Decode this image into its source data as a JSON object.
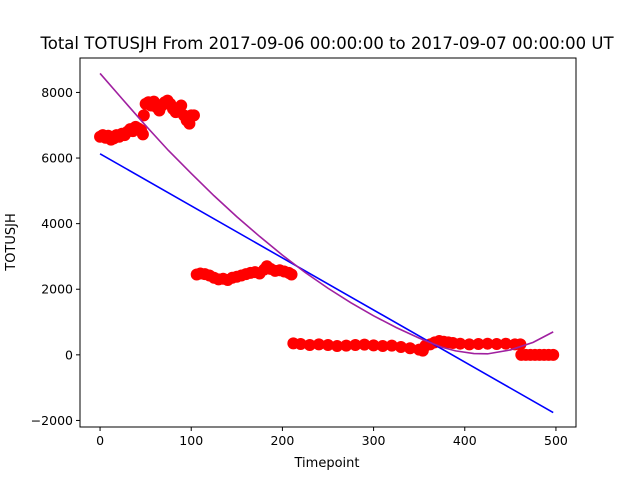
{
  "chart_data": {
    "type": "scatter",
    "title": "Total TOTUSJH From 2017-09-06 00:00:00 to 2017-09-07 00:00:00 UT",
    "xlabel": "Timepoint",
    "ylabel": "TOTUSJH",
    "xlim": [
      -22,
      522
    ],
    "ylim": [
      -2200,
      9050
    ],
    "x_ticks": [
      0,
      100,
      200,
      300,
      400,
      500
    ],
    "y_ticks": [
      -2000,
      0,
      2000,
      4000,
      6000,
      8000
    ],
    "x_tick_labels": [
      "0",
      "100",
      "200",
      "300",
      "400",
      "500"
    ],
    "y_tick_labels": [
      "−2000",
      "0",
      "2000",
      "4000",
      "6000",
      "8000"
    ],
    "grid": false,
    "legend": "none",
    "series": [
      {
        "kind": "scatter",
        "color": "#ff0000",
        "points": [
          [
            0,
            6650
          ],
          [
            3,
            6700
          ],
          [
            6,
            6620
          ],
          [
            9,
            6680
          ],
          [
            12,
            6560
          ],
          [
            15,
            6600
          ],
          [
            18,
            6700
          ],
          [
            21,
            6650
          ],
          [
            24,
            6740
          ],
          [
            27,
            6700
          ],
          [
            30,
            6800
          ],
          [
            33,
            6880
          ],
          [
            36,
            6820
          ],
          [
            39,
            6950
          ],
          [
            42,
            6900
          ],
          [
            45,
            6850
          ],
          [
            47,
            6720
          ],
          [
            48,
            7300
          ],
          [
            50,
            7650
          ],
          [
            53,
            7700
          ],
          [
            56,
            7600
          ],
          [
            59,
            7720
          ],
          [
            62,
            7550
          ],
          [
            65,
            7450
          ],
          [
            68,
            7600
          ],
          [
            71,
            7700
          ],
          [
            74,
            7750
          ],
          [
            77,
            7650
          ],
          [
            80,
            7500
          ],
          [
            83,
            7400
          ],
          [
            86,
            7450
          ],
          [
            89,
            7600
          ],
          [
            92,
            7300
          ],
          [
            95,
            7150
          ],
          [
            98,
            7050
          ],
          [
            100,
            7300
          ],
          [
            103,
            7300
          ],
          [
            106,
            2450
          ],
          [
            110,
            2480
          ],
          [
            115,
            2460
          ],
          [
            120,
            2420
          ],
          [
            125,
            2350
          ],
          [
            130,
            2300
          ],
          [
            135,
            2320
          ],
          [
            140,
            2280
          ],
          [
            145,
            2350
          ],
          [
            150,
            2380
          ],
          [
            155,
            2420
          ],
          [
            160,
            2460
          ],
          [
            165,
            2500
          ],
          [
            170,
            2520
          ],
          [
            175,
            2480
          ],
          [
            180,
            2600
          ],
          [
            183,
            2700
          ],
          [
            187,
            2620
          ],
          [
            192,
            2560
          ],
          [
            197,
            2580
          ],
          [
            202,
            2540
          ],
          [
            207,
            2500
          ],
          [
            210,
            2450
          ],
          [
            212,
            350
          ],
          [
            220,
            330
          ],
          [
            230,
            300
          ],
          [
            240,
            320
          ],
          [
            250,
            300
          ],
          [
            260,
            270
          ],
          [
            270,
            280
          ],
          [
            280,
            300
          ],
          [
            290,
            310
          ],
          [
            300,
            290
          ],
          [
            310,
            270
          ],
          [
            320,
            280
          ],
          [
            330,
            240
          ],
          [
            340,
            200
          ],
          [
            350,
            160
          ],
          [
            354,
            130
          ],
          [
            357,
            280
          ],
          [
            362,
            320
          ],
          [
            367,
            380
          ],
          [
            372,
            420
          ],
          [
            377,
            400
          ],
          [
            382,
            380
          ],
          [
            387,
            360
          ],
          [
            395,
            340
          ],
          [
            405,
            320
          ],
          [
            415,
            330
          ],
          [
            425,
            340
          ],
          [
            435,
            330
          ],
          [
            445,
            340
          ],
          [
            455,
            320
          ],
          [
            461,
            320
          ],
          [
            462,
            0
          ],
          [
            467,
            0
          ],
          [
            472,
            0
          ],
          [
            477,
            0
          ],
          [
            482,
            0
          ],
          [
            487,
            0
          ],
          [
            492,
            0
          ],
          [
            497,
            0
          ]
        ]
      },
      {
        "kind": "line",
        "color": "#0000ff",
        "points": [
          [
            0,
            6130
          ],
          [
            497,
            -1760
          ]
        ]
      },
      {
        "kind": "line",
        "color": "#a020a0",
        "points": [
          [
            0,
            8580
          ],
          [
            25,
            7780
          ],
          [
            50,
            6990
          ],
          [
            75,
            6230
          ],
          [
            100,
            5530
          ],
          [
            125,
            4850
          ],
          [
            150,
            4210
          ],
          [
            175,
            3610
          ],
          [
            200,
            3040
          ],
          [
            225,
            2510
          ],
          [
            250,
            2030
          ],
          [
            275,
            1590
          ],
          [
            300,
            1190
          ],
          [
            325,
            830
          ],
          [
            350,
            510
          ],
          [
            375,
            230
          ],
          [
            390,
            120
          ],
          [
            410,
            40
          ],
          [
            425,
            30
          ],
          [
            450,
            150
          ],
          [
            475,
            380
          ],
          [
            497,
            700
          ]
        ]
      }
    ]
  }
}
